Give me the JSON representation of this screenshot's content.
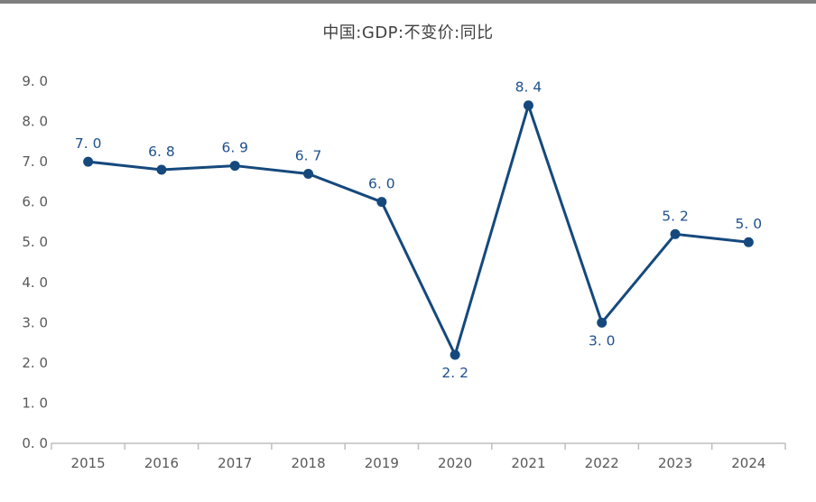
{
  "page": {
    "background": "#ffffff",
    "top_bar_color": "#7f7f7f"
  },
  "chart_data": {
    "type": "line",
    "title": "中国:GDP:不变价:同比",
    "x": [
      "2015",
      "2016",
      "2017",
      "2018",
      "2019",
      "2020",
      "2021",
      "2022",
      "2023",
      "2024"
    ],
    "series": [
      {
        "name": "中国:GDP:不变价:同比",
        "values": [
          7.0,
          6.8,
          6.9,
          6.7,
          6.0,
          2.2,
          8.4,
          3.0,
          5.2,
          5.0
        ]
      }
    ],
    "point_labels": [
      "7. 0",
      "6. 8",
      "6. 9",
      "6. 7",
      "6. 0",
      "2. 2",
      "8. 4",
      "3. 0",
      "5. 2",
      "5. 0"
    ],
    "point_label_positions": [
      "above",
      "above",
      "above",
      "above",
      "above",
      "below",
      "above",
      "below",
      "above",
      "above"
    ],
    "ylim": [
      0,
      9
    ],
    "ytick_step": 1,
    "ytick_labels": [
      "0. 0",
      "1. 0",
      "2. 0",
      "3. 0",
      "4. 0",
      "5. 0",
      "6. 0",
      "7. 0",
      "8. 0",
      "9. 0"
    ],
    "xlabel": "",
    "ylabel": "",
    "grid": false,
    "legend_position": "none",
    "colors": {
      "line": "#15497d",
      "marker": "#15497d",
      "data_label": "#1e508c",
      "axis_line": "#bfbfbf",
      "tick_label": "#595959",
      "title": "#404040"
    }
  }
}
